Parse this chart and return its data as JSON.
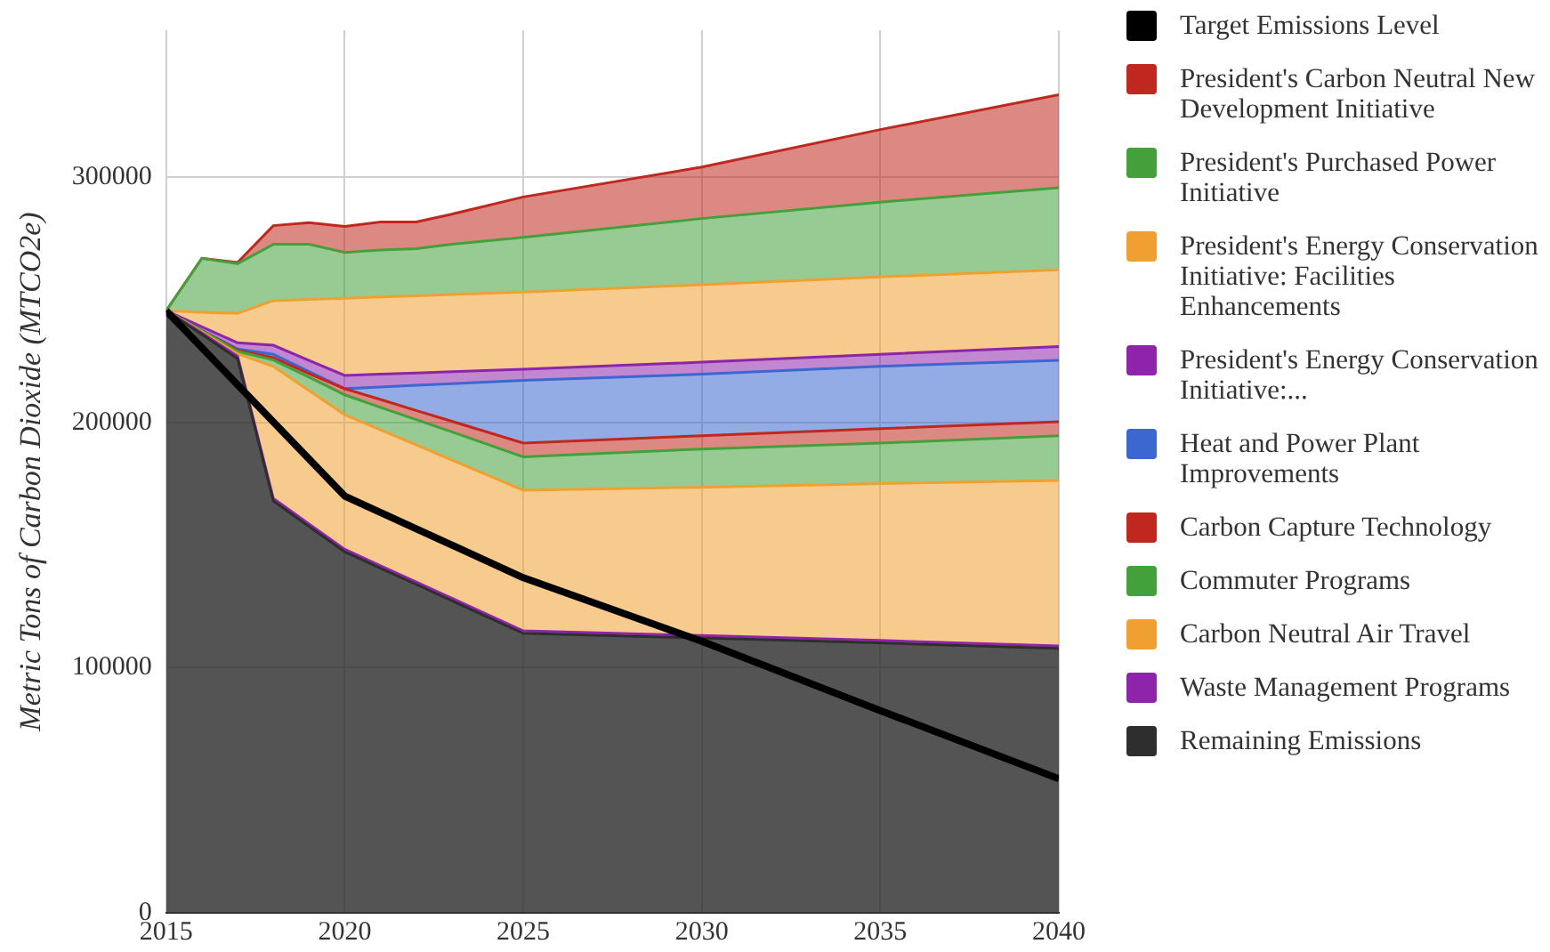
{
  "chart_data": {
    "type": "area",
    "stacked": true,
    "ylabel": "Metric Tons of Carbon Dioxide (MTCO2e)",
    "x": [
      2015,
      2016,
      2017,
      2018,
      2019,
      2020,
      2021,
      2022,
      2023,
      2025,
      2030,
      2035,
      2040
    ],
    "xlim": [
      2015,
      2040
    ],
    "xticks": [
      2015,
      2020,
      2025,
      2030,
      2035,
      2040
    ],
    "ylim": [
      0,
      360000
    ],
    "yticks": [
      0,
      100000,
      200000,
      300000
    ],
    "grid": true,
    "legend": "right",
    "series": [
      {
        "name": "Remaining Emissions",
        "color": "#2e2e2e",
        "values": [
          245600,
          236000,
          226000,
          168000,
          157600,
          147300,
          140600,
          134000,
          127300,
          114000,
          112100,
          110100,
          107900
        ]
      },
      {
        "name": "Waste Management Programs",
        "color": "#8e24aa",
        "values": [
          0,
          500,
          1000,
          1000,
          1000,
          1000,
          1000,
          1000,
          1000,
          1000,
          1000,
          1000,
          1000
        ]
      },
      {
        "name": "Carbon Neutral Air Travel",
        "color": "#f0a030",
        "values": [
          0,
          500,
          1000,
          53900,
          54400,
          54900,
          55400,
          55900,
          56400,
          57400,
          60500,
          64000,
          67500
        ]
      },
      {
        "name": "Commuter Programs",
        "color": "#43a03a",
        "values": [
          0,
          500,
          1000,
          2600,
          5500,
          8100,
          9200,
          10300,
          11500,
          13600,
          15600,
          16500,
          18200
        ]
      },
      {
        "name": "Carbon Capture Technology",
        "color": "#c0281f",
        "values": [
          0,
          0,
          500,
          1000,
          1500,
          2500,
          3200,
          3700,
          4300,
          5600,
          5400,
          5900,
          5700
        ]
      },
      {
        "name": "Heat and Power Plant Improvements",
        "color": "#3d67d0",
        "values": [
          0,
          0,
          500,
          1300,
          800,
          0,
          5100,
          10300,
          15300,
          25600,
          25100,
          25400,
          25100
        ]
      },
      {
        "name": "President's Energy Conservation Initiative:...",
        "color": "#8e24aa",
        "values": [
          0,
          1500,
          2500,
          3700,
          4500,
          5400,
          5200,
          5000,
          4900,
          4500,
          4900,
          4900,
          5600
        ]
      },
      {
        "name": "President's Energy Conservation Initiative: Facilities Enhancements",
        "color": "#f0a030",
        "values": [
          0,
          6000,
          12000,
          18200,
          24900,
          31500,
          31500,
          31500,
          31500,
          31500,
          31600,
          31600,
          31300
        ]
      },
      {
        "name": "President's Purchased Power Initiative",
        "color": "#43a03a",
        "values": [
          0,
          22000,
          20300,
          23000,
          22500,
          18700,
          19200,
          19200,
          20500,
          22300,
          27000,
          30500,
          33500
        ]
      },
      {
        "name": "President's Carbon Neutral New Development Initiative",
        "color": "#c0281f",
        "values": [
          0,
          0,
          500,
          7600,
          8800,
          10600,
          11400,
          10900,
          12300,
          16500,
          21000,
          29600,
          37900
        ]
      },
      {
        "name": "Target Emissions Level",
        "type": "line",
        "color": "#000000",
        "x": [
          2015,
          2020,
          2025,
          2030,
          2035,
          2040
        ],
        "values": [
          245600,
          170000,
          136700,
          110800,
          82500,
          54700
        ]
      }
    ]
  }
}
